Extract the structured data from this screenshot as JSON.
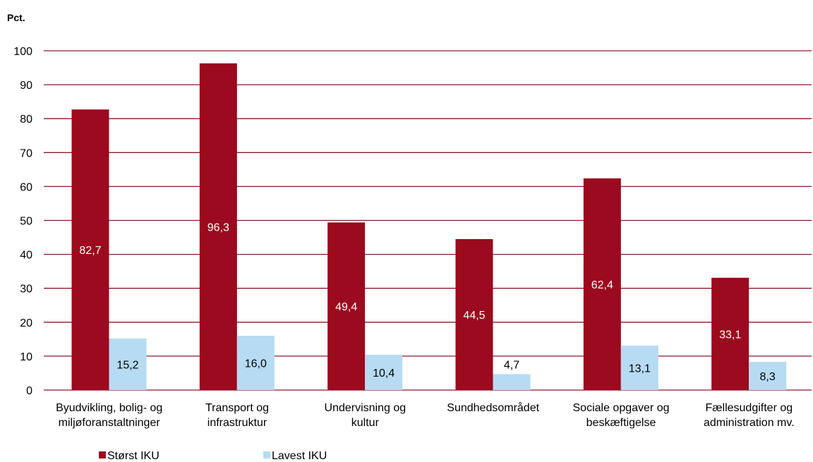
{
  "chart_data": {
    "type": "bar",
    "ylabel": "Pct.",
    "ylim": [
      0,
      100
    ],
    "yticks": [
      0,
      10,
      20,
      30,
      40,
      50,
      60,
      70,
      80,
      90,
      100
    ],
    "grid": true,
    "legend_position": "bottom-left",
    "categories": [
      [
        "Byudvikling, bolig- og",
        "miljøforanstaltninger"
      ],
      [
        "Transport og",
        "infrastruktur"
      ],
      [
        "Undervisning og",
        "kultur"
      ],
      [
        "Sundhedsområdet"
      ],
      [
        "Sociale opgaver og",
        "beskæftigelse"
      ],
      [
        "Fællesudgifter og",
        "administration mv."
      ]
    ],
    "series": [
      {
        "name": "Størst IKU",
        "color": "#9b0a1e",
        "values": [
          82.7,
          96.3,
          49.4,
          44.5,
          62.4,
          33.1
        ],
        "labels": [
          "82,7",
          "96,3",
          "49,4",
          "44,5",
          "62,4",
          "33,1"
        ]
      },
      {
        "name": "Lavest IKU",
        "color": "#b7dbf2",
        "values": [
          15.2,
          16.0,
          10.4,
          4.7,
          13.1,
          8.3
        ],
        "labels": [
          "15,2",
          "16,0",
          "10,4",
          "4,7",
          "13,1",
          "8,3"
        ]
      }
    ]
  }
}
